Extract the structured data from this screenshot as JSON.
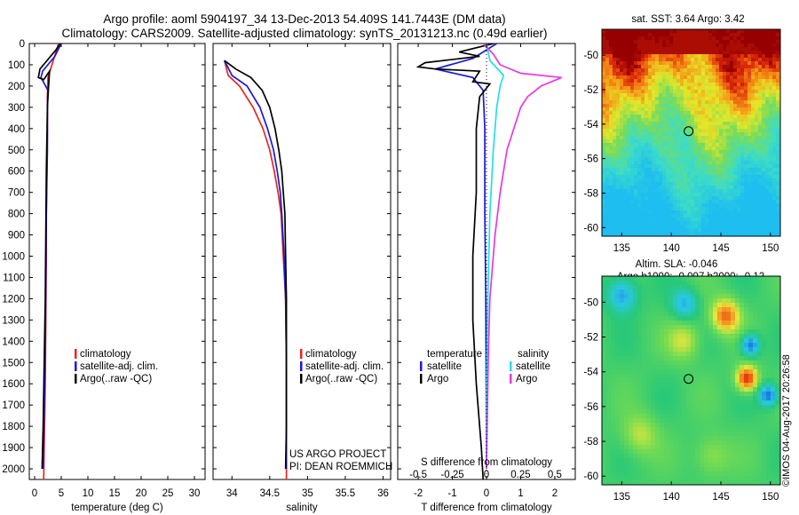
{
  "header": {
    "title_line1": "Argo profile: aoml 5904197_34 13-Dec-2013 54.409S 141.7443E (DM data)",
    "title_line2": "Climatology: CARS2009. Satellite-adjusted climatology: synTS_20131213.nc (0.49d earlier)"
  },
  "colors": {
    "climatology": "#e8261e",
    "satellite": "#1a1ad8",
    "argo": "#000000",
    "sat_salinity": "#22e0e6",
    "argo_salinity": "#e838e0"
  },
  "chart_data": [
    {
      "id": "temperature",
      "type": "line",
      "xlabel": "temperature (deg C)",
      "ylabel": "",
      "xlim": [
        -1,
        32
      ],
      "ylim": [
        2050,
        0
      ],
      "y_inverted": true,
      "xticks": [
        0,
        5,
        10,
        15,
        20,
        25,
        30
      ],
      "yticks": [
        0,
        100,
        200,
        300,
        400,
        500,
        600,
        700,
        800,
        900,
        1000,
        1100,
        1200,
        1300,
        1400,
        1500,
        1600,
        1700,
        1800,
        1900,
        2000
      ],
      "legend": [
        "climatology",
        "satellite-adj. clim.",
        "Argo(..raw -QC)"
      ],
      "series": [
        {
          "name": "climatology",
          "color_key": "climatology",
          "points": [
            [
              4.5,
              0
            ],
            [
              3.5,
              80
            ],
            [
              2.5,
              160
            ],
            [
              2.4,
              250
            ],
            [
              2.4,
              400
            ],
            [
              2.3,
              600
            ],
            [
              2.2,
              800
            ],
            [
              2.2,
              1000
            ],
            [
              2.1,
              1300
            ],
            [
              2.0,
              1600
            ],
            [
              1.8,
              1900
            ],
            [
              1.7,
              2050
            ]
          ]
        },
        {
          "name": "satellite-adj. clim.",
          "color_key": "satellite",
          "points": [
            [
              5.0,
              0
            ],
            [
              3.8,
              60
            ],
            [
              1.5,
              130
            ],
            [
              1.2,
              160
            ],
            [
              2.5,
              220
            ],
            [
              2.4,
              300
            ],
            [
              2.4,
              500
            ],
            [
              2.2,
              800
            ],
            [
              2.1,
              1100
            ],
            [
              2.0,
              1400
            ],
            [
              1.8,
              1700
            ],
            [
              1.6,
              2000
            ]
          ]
        },
        {
          "name": "Argo(..raw -QC)",
          "color_key": "argo",
          "points": [
            [
              4.8,
              0
            ],
            [
              4.0,
              30
            ],
            [
              1.0,
              120
            ],
            [
              0.7,
              160
            ],
            [
              1.7,
              170
            ],
            [
              2.8,
              130
            ],
            [
              2.6,
              210
            ],
            [
              2.4,
              300
            ],
            [
              2.2,
              600
            ],
            [
              2.1,
              900
            ],
            [
              2.0,
              1200
            ],
            [
              1.8,
              1500
            ],
            [
              1.6,
              1800
            ],
            [
              1.4,
              2000
            ]
          ]
        }
      ]
    },
    {
      "id": "salinity",
      "type": "line",
      "xlabel": "salinity",
      "ylabel": "",
      "xlim": [
        33.75,
        36.1
      ],
      "ylim": [
        2050,
        0
      ],
      "y_inverted": true,
      "xticks": [
        34,
        34.5,
        35,
        35.5,
        36
      ],
      "legend": [
        "climatology",
        "satellite-adj. clim.",
        "Argo(..raw -QC)"
      ],
      "series": [
        {
          "name": "climatology",
          "color_key": "climatology",
          "points": [
            [
              33.9,
              80
            ],
            [
              33.95,
              150
            ],
            [
              34.1,
              200
            ],
            [
              34.28,
              300
            ],
            [
              34.41,
              400
            ],
            [
              34.5,
              500
            ],
            [
              34.56,
              600
            ],
            [
              34.61,
              700
            ],
            [
              34.65,
              800
            ],
            [
              34.68,
              1000
            ],
            [
              34.71,
              1200
            ],
            [
              34.72,
              1500
            ],
            [
              34.72,
              1800
            ],
            [
              34.72,
              2050
            ]
          ]
        },
        {
          "name": "satellite-adj. clim.",
          "color_key": "satellite",
          "points": [
            [
              33.9,
              80
            ],
            [
              34.0,
              150
            ],
            [
              34.2,
              200
            ],
            [
              34.37,
              300
            ],
            [
              34.47,
              400
            ],
            [
              34.55,
              500
            ],
            [
              34.6,
              600
            ],
            [
              34.64,
              700
            ],
            [
              34.66,
              800
            ],
            [
              34.69,
              1000
            ],
            [
              34.71,
              1200
            ],
            [
              34.72,
              1500
            ],
            [
              34.72,
              1800
            ],
            [
              34.72,
              2000
            ]
          ]
        },
        {
          "name": "Argo(..raw -QC)",
          "color_key": "argo",
          "points": [
            [
              33.9,
              80
            ],
            [
              34.05,
              120
            ],
            [
              34.25,
              160
            ],
            [
              34.4,
              220
            ],
            [
              34.5,
              300
            ],
            [
              34.57,
              400
            ],
            [
              34.62,
              500
            ],
            [
              34.66,
              600
            ],
            [
              34.68,
              700
            ],
            [
              34.7,
              800
            ],
            [
              34.71,
              1000
            ],
            [
              34.72,
              1200
            ],
            [
              34.72,
              1500
            ],
            [
              34.72,
              1800
            ],
            [
              34.71,
              2000
            ]
          ]
        }
      ],
      "annotation": [
        "US ARGO PROJECT",
        "PI: DEAN ROEMMICH"
      ]
    },
    {
      "id": "difference",
      "type": "line",
      "xlabel_top": "S difference from climatology",
      "xlabel_bottom": "T difference from climatology",
      "xlim": [
        -2.6,
        2.6
      ],
      "ylim": [
        2050,
        0
      ],
      "y_inverted": true,
      "top_tick_labels": [
        "-0.5",
        "-0.25",
        "0",
        "0.25",
        "0.5"
      ],
      "top_tick_values_T": [
        -2,
        -1,
        0,
        1,
        2
      ],
      "xticks": [
        -2,
        -1,
        0,
        1,
        2
      ],
      "legend_temperature_title": "temperature",
      "legend_salinity_title": "salinity",
      "legend_temperature": [
        "satellite",
        "Argo"
      ],
      "legend_salinity": [
        "satellite",
        "Argo"
      ],
      "series": [
        {
          "name": "temperature satellite",
          "color_key": "satellite",
          "points": [
            [
              0.3,
              0
            ],
            [
              -0.4,
              70
            ],
            [
              -1.5,
              120
            ],
            [
              -0.4,
              160
            ],
            [
              -0.1,
              220
            ],
            [
              -0.05,
              400
            ],
            [
              -0.05,
              800
            ],
            [
              -0.02,
              1200
            ],
            [
              -0.01,
              1600
            ],
            [
              0,
              2000
            ]
          ]
        },
        {
          "name": "temperature Argo",
          "color_key": "argo",
          "points": [
            [
              0.2,
              0
            ],
            [
              -0.8,
              40
            ],
            [
              -0.2,
              60
            ],
            [
              -1.8,
              90
            ],
            [
              -2.0,
              110
            ],
            [
              -1.5,
              120
            ],
            [
              -0.2,
              130
            ],
            [
              -0.4,
              180
            ],
            [
              0.1,
              190
            ],
            [
              -0.2,
              250
            ],
            [
              -0.3,
              400
            ],
            [
              -0.3,
              700
            ],
            [
              -0.4,
              1000
            ],
            [
              -0.4,
              1300
            ],
            [
              -0.3,
              1600
            ],
            [
              -0.15,
              1900
            ],
            [
              -0.1,
              2050
            ]
          ]
        },
        {
          "name": "salinity satellite",
          "color_key": "sat_salinity",
          "points": [
            [
              0,
              0
            ],
            [
              0.1,
              80
            ],
            [
              0.5,
              150
            ],
            [
              0.4,
              200
            ],
            [
              0.3,
              300
            ],
            [
              0.2,
              500
            ],
            [
              0.1,
              800
            ],
            [
              0.04,
              1200
            ],
            [
              0,
              1600
            ],
            [
              0,
              2000
            ]
          ]
        },
        {
          "name": "salinity Argo",
          "color_key": "argo_salinity",
          "points": [
            [
              -0.1,
              0
            ],
            [
              0.2,
              50
            ],
            [
              0.4,
              100
            ],
            [
              1.0,
              140
            ],
            [
              2.2,
              160
            ],
            [
              1.6,
              200
            ],
            [
              1.2,
              250
            ],
            [
              1.0,
              300
            ],
            [
              0.8,
              400
            ],
            [
              0.6,
              500
            ],
            [
              0.4,
              700
            ],
            [
              0.25,
              900
            ],
            [
              0.1,
              1200
            ],
            [
              0.05,
              1500
            ],
            [
              0,
              2000
            ]
          ]
        }
      ]
    },
    {
      "id": "sst_map",
      "type": "heatmap",
      "title": "sat. SST: 3.64 Argo: 3.42",
      "xlim": [
        133,
        151
      ],
      "ylim": [
        -60.5,
        -48.5
      ],
      "xticks": [
        135,
        140,
        145,
        150
      ],
      "yticks": [
        -60,
        -58,
        -56,
        -54,
        -52,
        -50
      ],
      "marker": {
        "lon": 141.74,
        "lat": -54.41
      }
    },
    {
      "id": "sla_map",
      "type": "heatmap",
      "title": "Altim. SLA: -0.046",
      "subtitle": "Argo h1000: -0.097 h2000: -0.12",
      "xlim": [
        133,
        151
      ],
      "ylim": [
        -60.5,
        -48.5
      ],
      "xticks": [
        135,
        140,
        145,
        150
      ],
      "yticks": [
        -60,
        -58,
        -56,
        -54,
        -52,
        -50
      ],
      "marker": {
        "lon": 141.74,
        "lat": -54.41
      }
    }
  ],
  "side_label": "©IMOS 04-Aug-2017 20:26:58"
}
